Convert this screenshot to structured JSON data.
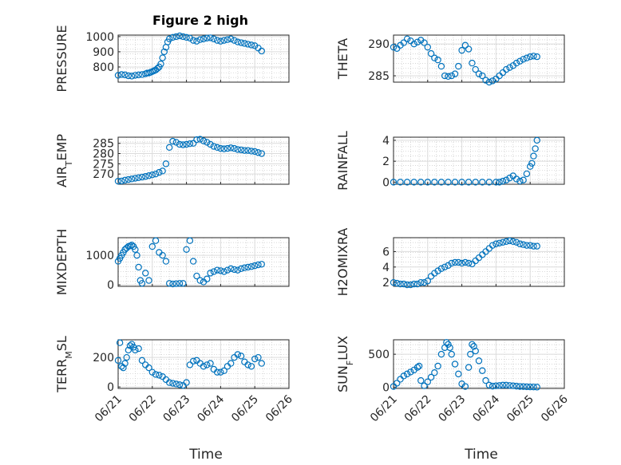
{
  "figure": {
    "title": "Figure 2 high",
    "marker_color": "#0072BD",
    "marker": "circle"
  },
  "chart_data": [
    {
      "type": "scatter",
      "ylabel": "PRESSURE",
      "xlabel": "",
      "title": "Figure 2 high",
      "x_ticks": [
        "06/21",
        "06/22",
        "06/23",
        "06/24",
        "06/25",
        "06/26"
      ],
      "y_ticks": [
        "800",
        "900",
        "1000"
      ],
      "ylim": [
        700,
        1010
      ],
      "grid": true,
      "x": [
        0.0,
        0.1,
        0.2,
        0.3,
        0.4,
        0.5,
        0.6,
        0.7,
        0.8,
        0.85,
        0.9,
        0.95,
        1.0,
        1.05,
        1.1,
        1.15,
        1.2,
        1.25,
        1.3,
        1.35,
        1.4,
        1.45,
        1.5,
        1.6,
        1.7,
        1.8,
        1.9,
        2.0,
        2.1,
        2.2,
        2.3,
        2.4,
        2.5,
        2.6,
        2.7,
        2.8,
        2.9,
        3.0,
        3.1,
        3.2,
        3.3,
        3.4,
        3.5,
        3.6,
        3.7,
        3.8,
        3.9,
        4.0,
        4.1,
        4.2
      ],
      "y": [
        745,
        750,
        748,
        742,
        740,
        745,
        748,
        750,
        755,
        760,
        760,
        765,
        770,
        775,
        780,
        790,
        800,
        820,
        860,
        900,
        930,
        965,
        985,
        995,
        1000,
        1005,
        1000,
        995,
        990,
        975,
        970,
        980,
        985,
        990,
        992,
        985,
        975,
        970,
        975,
        980,
        985,
        975,
        965,
        960,
        955,
        950,
        945,
        940,
        925,
        905
      ]
    },
    {
      "type": "scatter",
      "ylabel": "THETA",
      "xlabel": "",
      "x_ticks": [
        "06/21",
        "06/22",
        "06/23",
        "06/24",
        "06/25",
        "06/26"
      ],
      "y_ticks": [
        "285",
        "290"
      ],
      "ylim": [
        284,
        291.4
      ],
      "grid": true,
      "x": [
        0.0,
        0.1,
        0.2,
        0.3,
        0.4,
        0.5,
        0.6,
        0.7,
        0.8,
        0.9,
        1.0,
        1.1,
        1.2,
        1.3,
        1.4,
        1.5,
        1.6,
        1.7,
        1.8,
        1.9,
        2.0,
        2.1,
        2.2,
        2.3,
        2.4,
        2.5,
        2.6,
        2.7,
        2.8,
        2.9,
        3.0,
        3.1,
        3.2,
        3.3,
        3.4,
        3.5,
        3.6,
        3.7,
        3.8,
        3.9,
        4.0,
        4.1,
        4.2
      ],
      "y": [
        289.5,
        289.3,
        289.8,
        290.2,
        290.8,
        290.5,
        290.0,
        290.3,
        290.6,
        290.2,
        289.5,
        288.5,
        287.8,
        287.5,
        286.5,
        285.0,
        284.9,
        285.0,
        285.3,
        286.5,
        289.0,
        289.8,
        289.2,
        287.0,
        286.0,
        285.3,
        285.0,
        284.3,
        284.0,
        284.2,
        284.5,
        285.0,
        285.5,
        286.0,
        286.3,
        286.6,
        287.0,
        287.3,
        287.6,
        287.8,
        288.0,
        288.1,
        288.0
      ]
    },
    {
      "type": "scatter",
      "ylabel": "AIR_TEMP",
      "xlabel": "",
      "x_ticks": [
        "06/21",
        "06/22",
        "06/23",
        "06/24",
        "06/25",
        "06/26"
      ],
      "y_ticks": [
        "270",
        "275",
        "280",
        "285"
      ],
      "ylim": [
        265,
        288
      ],
      "grid": true,
      "x": [
        0.0,
        0.1,
        0.2,
        0.3,
        0.4,
        0.5,
        0.6,
        0.7,
        0.8,
        0.9,
        1.0,
        1.1,
        1.2,
        1.3,
        1.4,
        1.5,
        1.6,
        1.7,
        1.8,
        1.9,
        2.0,
        2.1,
        2.2,
        2.3,
        2.4,
        2.5,
        2.6,
        2.7,
        2.8,
        2.9,
        3.0,
        3.1,
        3.2,
        3.3,
        3.4,
        3.5,
        3.6,
        3.7,
        3.8,
        3.9,
        4.0,
        4.1,
        4.2
      ],
      "y": [
        266.5,
        266.6,
        267.0,
        267.3,
        267.6,
        267.9,
        268.2,
        268.5,
        268.8,
        269.2,
        269.6,
        270.0,
        270.8,
        271.5,
        275.0,
        283.0,
        286.0,
        285.5,
        284.5,
        284.3,
        284.5,
        284.8,
        285.0,
        286.8,
        287.0,
        286.2,
        285.5,
        284.5,
        283.5,
        283.0,
        282.5,
        282.3,
        282.5,
        282.8,
        282.5,
        282.0,
        281.8,
        281.5,
        281.5,
        281.2,
        281.0,
        280.5,
        280.0
      ]
    },
    {
      "type": "scatter",
      "ylabel": "RAINFALL",
      "xlabel": "",
      "x_ticks": [
        "06/21",
        "06/22",
        "06/23",
        "06/24",
        "06/25",
        "06/26"
      ],
      "y_ticks": [
        "0",
        "2",
        "4"
      ],
      "ylim": [
        -0.2,
        4.3
      ],
      "grid": true,
      "x": [
        0.0,
        0.2,
        0.4,
        0.6,
        0.8,
        1.0,
        1.2,
        1.4,
        1.6,
        1.8,
        2.0,
        2.2,
        2.4,
        2.6,
        2.8,
        3.0,
        3.1,
        3.2,
        3.3,
        3.4,
        3.5,
        3.6,
        3.7,
        3.8,
        3.9,
        4.0,
        4.05,
        4.1,
        4.15,
        4.2
      ],
      "y": [
        0,
        0,
        0,
        0,
        0,
        0,
        0,
        0,
        0,
        0,
        0,
        0,
        0,
        0,
        0,
        0,
        0,
        0.1,
        0.2,
        0.4,
        0.6,
        0.3,
        0.1,
        0.2,
        0.8,
        1.5,
        1.8,
        2.5,
        3.2,
        4.0
      ]
    },
    {
      "type": "scatter",
      "ylabel": "MIXDEPTH",
      "xlabel": "",
      "x_ticks": [
        "06/21",
        "06/22",
        "06/23",
        "06/24",
        "06/25",
        "06/26"
      ],
      "y_ticks": [
        "0",
        "1000"
      ],
      "ylim": [
        -50,
        1600
      ],
      "grid": true,
      "x": [
        0.0,
        0.05,
        0.1,
        0.15,
        0.2,
        0.25,
        0.3,
        0.35,
        0.4,
        0.45,
        0.5,
        0.55,
        0.6,
        0.65,
        0.7,
        0.8,
        0.9,
        1.0,
        1.1,
        1.2,
        1.3,
        1.4,
        1.5,
        1.6,
        1.7,
        1.8,
        1.9,
        2.0,
        2.1,
        2.2,
        2.3,
        2.4,
        2.5,
        2.6,
        2.7,
        2.8,
        2.9,
        3.0,
        3.1,
        3.2,
        3.3,
        3.4,
        3.5,
        3.6,
        3.7,
        3.8,
        3.9,
        4.0,
        4.1,
        4.2
      ],
      "y": [
        800,
        900,
        1000,
        1100,
        1200,
        1250,
        1300,
        1320,
        1350,
        1300,
        1200,
        1000,
        600,
        150,
        50,
        400,
        150,
        1300,
        1500,
        1100,
        1000,
        800,
        50,
        30,
        40,
        50,
        50,
        1200,
        1500,
        800,
        300,
        150,
        100,
        200,
        400,
        450,
        500,
        480,
        450,
        500,
        550,
        520,
        500,
        550,
        580,
        600,
        620,
        650,
        680,
        700
      ]
    },
    {
      "type": "scatter",
      "ylabel": "H2OMIXRA",
      "xlabel": "",
      "x_ticks": [
        "06/21",
        "06/22",
        "06/23",
        "06/24",
        "06/25",
        "06/26"
      ],
      "y_ticks": [
        "2",
        "4",
        "6"
      ],
      "ylim": [
        1.5,
        7.8
      ],
      "grid": true,
      "x": [
        0.0,
        0.1,
        0.2,
        0.3,
        0.4,
        0.5,
        0.6,
        0.7,
        0.8,
        0.9,
        1.0,
        1.1,
        1.2,
        1.3,
        1.4,
        1.5,
        1.6,
        1.7,
        1.8,
        1.9,
        2.0,
        2.1,
        2.2,
        2.3,
        2.4,
        2.5,
        2.6,
        2.7,
        2.8,
        2.9,
        3.0,
        3.1,
        3.2,
        3.3,
        3.4,
        3.5,
        3.6,
        3.7,
        3.8,
        3.9,
        4.0,
        4.1,
        4.2
      ],
      "y": [
        2.0,
        1.9,
        1.8,
        1.8,
        1.7,
        1.7,
        1.8,
        1.8,
        2.0,
        2.0,
        2.2,
        2.8,
        3.2,
        3.5,
        3.8,
        4.0,
        4.2,
        4.5,
        4.6,
        4.6,
        4.5,
        4.6,
        4.5,
        4.4,
        4.8,
        5.2,
        5.6,
        6.0,
        6.4,
        6.8,
        7.0,
        7.1,
        7.2,
        7.3,
        7.4,
        7.3,
        7.2,
        7.0,
        6.9,
        6.8,
        6.8,
        6.7,
        6.7
      ]
    },
    {
      "type": "scatter",
      "ylabel": "TERR_MSL",
      "xlabel": "Time",
      "x_ticks": [
        "06/21",
        "06/22",
        "06/23",
        "06/24",
        "06/25",
        "06/26"
      ],
      "y_ticks": [
        "0",
        "200"
      ],
      "ylim": [
        -10,
        320
      ],
      "grid": true,
      "x": [
        0.0,
        0.05,
        0.1,
        0.15,
        0.2,
        0.25,
        0.3,
        0.35,
        0.4,
        0.45,
        0.5,
        0.6,
        0.7,
        0.8,
        0.9,
        1.0,
        1.1,
        1.2,
        1.3,
        1.4,
        1.5,
        1.6,
        1.7,
        1.8,
        1.9,
        2.0,
        2.1,
        2.2,
        2.3,
        2.4,
        2.5,
        2.6,
        2.7,
        2.8,
        2.9,
        3.0,
        3.1,
        3.2,
        3.3,
        3.4,
        3.5,
        3.6,
        3.7,
        3.8,
        3.9,
        4.0,
        4.1,
        4.2
      ],
      "y": [
        180,
        300,
        140,
        130,
        160,
        200,
        250,
        280,
        290,
        270,
        250,
        260,
        180,
        150,
        130,
        100,
        85,
        80,
        70,
        50,
        30,
        25,
        20,
        15,
        10,
        30,
        150,
        175,
        180,
        160,
        140,
        150,
        160,
        120,
        100,
        100,
        110,
        140,
        160,
        200,
        220,
        210,
        170,
        150,
        140,
        190,
        200,
        160
      ]
    },
    {
      "type": "scatter",
      "ylabel": "SUN_FLUX",
      "xlabel": "Time",
      "x_ticks": [
        "06/21",
        "06/22",
        "06/23",
        "06/24",
        "06/25",
        "06/26"
      ],
      "y_ticks": [
        "0",
        "500"
      ],
      "ylim": [
        -20,
        720
      ],
      "grid": true,
      "x": [
        0.0,
        0.1,
        0.2,
        0.3,
        0.4,
        0.5,
        0.6,
        0.7,
        0.75,
        0.8,
        0.9,
        1.0,
        1.1,
        1.2,
        1.3,
        1.4,
        1.5,
        1.55,
        1.6,
        1.65,
        1.7,
        1.8,
        1.9,
        2.0,
        2.1,
        2.2,
        2.25,
        2.3,
        2.35,
        2.4,
        2.5,
        2.6,
        2.7,
        2.8,
        2.9,
        3.0,
        3.1,
        3.2,
        3.3,
        3.4,
        3.5,
        3.6,
        3.7,
        3.8,
        3.9,
        4.0,
        4.1,
        4.2
      ],
      "y": [
        10,
        60,
        120,
        170,
        200,
        230,
        260,
        300,
        320,
        100,
        20,
        80,
        150,
        220,
        320,
        500,
        600,
        680,
        650,
        600,
        500,
        350,
        200,
        50,
        10,
        300,
        500,
        650,
        620,
        550,
        400,
        250,
        100,
        30,
        15,
        20,
        25,
        30,
        30,
        25,
        20,
        15,
        10,
        8,
        5,
        3,
        2,
        0
      ]
    }
  ]
}
